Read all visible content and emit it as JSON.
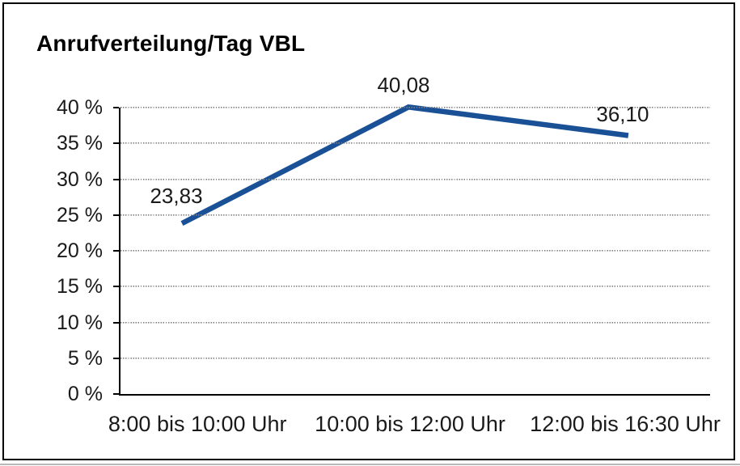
{
  "chart": {
    "title": "Anrufverteilung/Tag VBL"
  },
  "chart_data": {
    "type": "line",
    "title": "Anrufverteilung/Tag VBL",
    "categories": [
      "8:00 bis 10:00 Uhr",
      "10:00 bis 12:00 Uhr",
      "12:00 bis 16:30 Uhr"
    ],
    "values": [
      23.83,
      40.08,
      36.1
    ],
    "point_labels": [
      "23,83",
      "40,08",
      "36,10"
    ],
    "xlabel": "",
    "ylabel": "",
    "ylim": [
      0,
      40
    ],
    "ytick_step": 5,
    "ytick_labels": [
      "0 %",
      "5 %",
      "10 %",
      "15 %",
      "20 %",
      "25 %",
      "30 %",
      "35 %",
      "40 %"
    ],
    "grid": "horizontal-dotted",
    "legend": "none",
    "line_color": "#1a5196",
    "text_color": "#1a1a1a",
    "border_color": "#000000"
  }
}
